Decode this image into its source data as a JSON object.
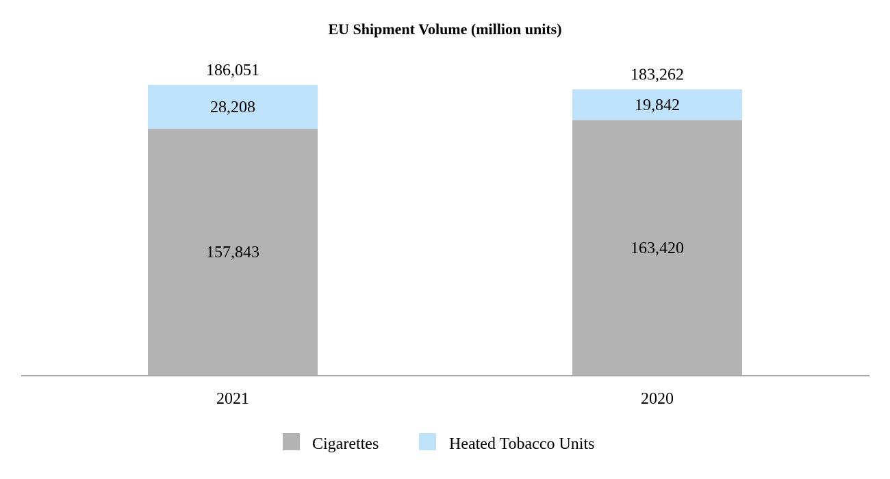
{
  "chart_data": {
    "type": "bar",
    "stacked": true,
    "title": "EU Shipment Volume (million units)",
    "xlabel": "",
    "ylabel": "",
    "categories": [
      "2021",
      "2020"
    ],
    "series": [
      {
        "name": "Cigarettes",
        "values": [
          157843,
          163420
        ],
        "labels": [
          "157,843",
          "163,420"
        ],
        "color": "#b3b3b3"
      },
      {
        "name": "Heated Tobacco Units",
        "values": [
          28208,
          19842
        ],
        "labels": [
          "28,208",
          "19,842"
        ],
        "color": "#bfe3fb"
      }
    ],
    "totals": [
      186051,
      183262
    ],
    "total_labels": [
      "186,051",
      "183,262"
    ],
    "ylim": [
      0,
      186051
    ],
    "grid": false,
    "legend_position": "bottom"
  }
}
